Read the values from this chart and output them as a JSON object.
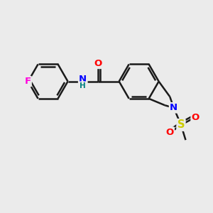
{
  "background_color": "#ebebeb",
  "bond_color": "#1a1a1a",
  "atom_colors": {
    "F": "#ff00dd",
    "O": "#ff0000",
    "N": "#0000ff",
    "S": "#cccc00",
    "H": "#008080"
  },
  "lw": 1.8,
  "fig_size": [
    3.0,
    3.0
  ],
  "dpi": 100
}
